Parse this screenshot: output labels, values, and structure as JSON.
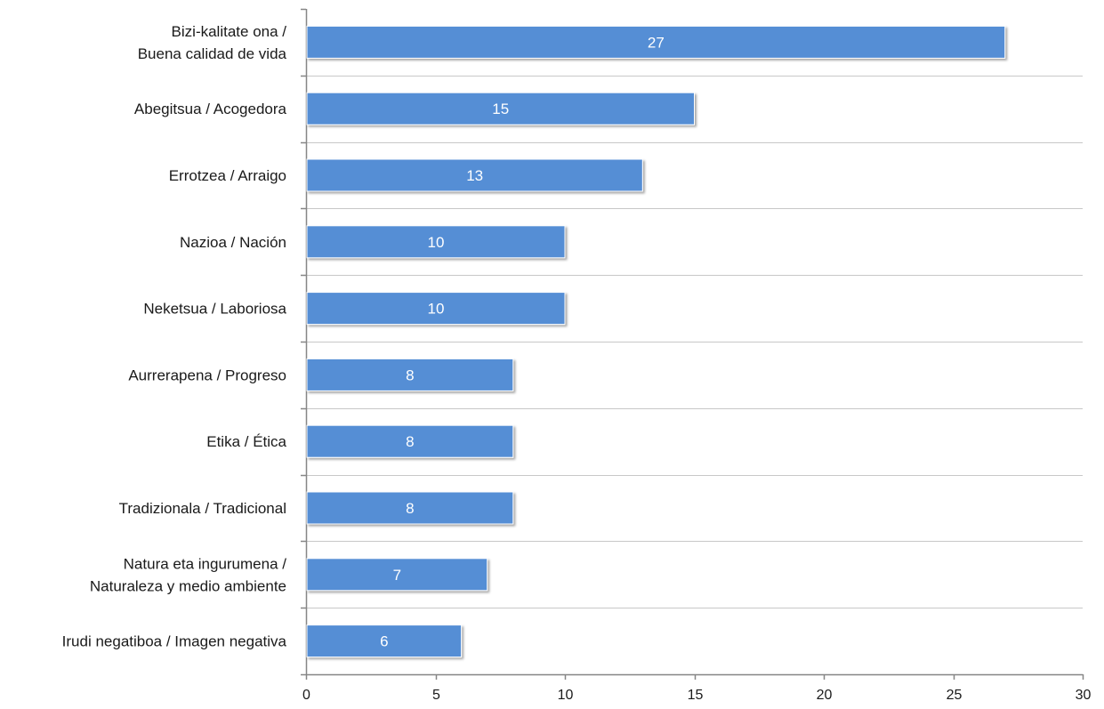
{
  "chart_data": {
    "type": "bar",
    "orientation": "horizontal",
    "title": "",
    "xlabel": "",
    "ylabel": "",
    "categories": [
      [
        "Bizi-kalitate ona /",
        "Buena calidad de vida"
      ],
      [
        "Abegitsua / Acogedora"
      ],
      [
        "Errotzea / Arraigo"
      ],
      [
        "Nazioa / Nación"
      ],
      [
        "Neketsua / Laboriosa"
      ],
      [
        "Aurrerapena / Progreso"
      ],
      [
        "Etika / Ética"
      ],
      [
        "Tradizionala / Tradicional"
      ],
      [
        "Natura eta ingurumena /",
        "Naturaleza y medio ambiente"
      ],
      [
        "Irudi negatiboa / Imagen negativa"
      ]
    ],
    "values": [
      27,
      15,
      13,
      10,
      10,
      8,
      8,
      8,
      7,
      6
    ],
    "data_labels": [
      "27",
      "15",
      "13",
      "10",
      "10",
      "8",
      "8",
      "8",
      "7",
      "6"
    ],
    "xlim": [
      0,
      30
    ],
    "xticks": [
      0,
      5,
      10,
      15,
      20,
      25,
      30
    ],
    "xtick_labels": [
      "0",
      "5",
      "10",
      "15",
      "20",
      "25",
      "30"
    ],
    "grid": "horizontal",
    "legend": "none",
    "bar_color": "#558ED5",
    "gridline_color": "#C8C8C8",
    "axis_color": "#868686"
  }
}
